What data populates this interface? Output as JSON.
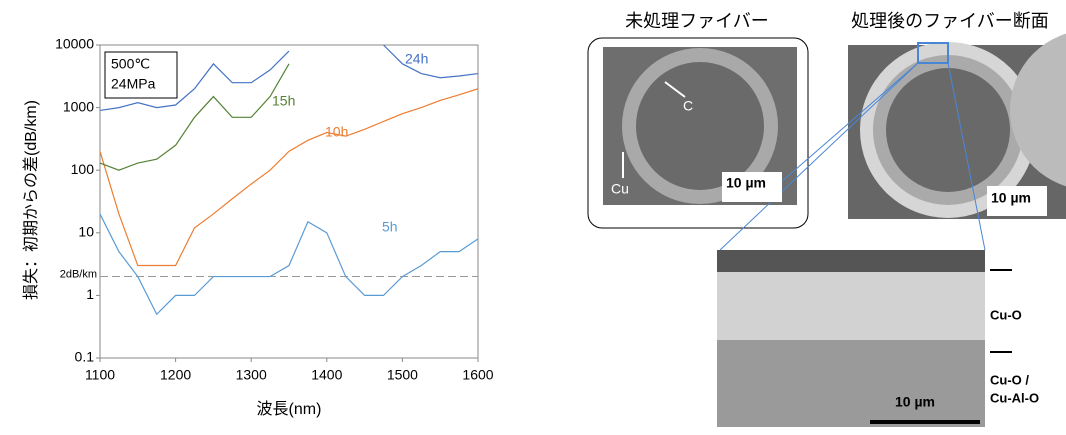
{
  "chart_data": {
    "type": "line",
    "yscale": "log",
    "y_label": "損失：初期からの差(dB/km)",
    "x_label": "波長(nm)",
    "annotation_lines": [
      "500℃",
      "24MPa"
    ],
    "reference_line": {
      "value": 2,
      "label": "2dB/km"
    },
    "x": [
      1100,
      1125,
      1150,
      1175,
      1200,
      1225,
      1250,
      1275,
      1300,
      1325,
      1350,
      1375,
      1400,
      1425,
      1450,
      1475,
      1500,
      1525,
      1550,
      1575,
      1600
    ],
    "series": [
      {
        "name": "5h",
        "color": "#5b9bd5",
        "values": [
          20,
          5,
          2,
          0.5,
          1,
          1,
          2,
          2,
          2,
          2,
          3,
          15,
          10,
          2,
          1,
          1,
          2,
          3,
          5,
          5,
          8
        ]
      },
      {
        "name": "10h",
        "color": "#ed7d31",
        "values": [
          200,
          20,
          3,
          3,
          3,
          12,
          20,
          35,
          60,
          100,
          200,
          300,
          400,
          350,
          450,
          600,
          800,
          1000,
          1300,
          1600,
          2000
        ]
      },
      {
        "name": "15h",
        "color": "#548235",
        "values": [
          130,
          100,
          130,
          150,
          250,
          700,
          1500,
          700,
          700,
          1500,
          5000,
          null,
          null,
          null,
          null,
          null,
          null,
          null,
          null,
          null,
          null
        ]
      },
      {
        "name": "24h",
        "color": "#4472c4",
        "values": [
          900,
          1000,
          1200,
          1000,
          1100,
          2000,
          5000,
          2500,
          2500,
          4000,
          8000,
          null,
          null,
          null,
          null,
          10000,
          5000,
          3500,
          3000,
          3200,
          3500
        ]
      }
    ],
    "xlim": [
      1100,
      1600
    ],
    "xticks": [
      1100,
      1200,
      1300,
      1400,
      1500,
      1600
    ],
    "ylim": [
      0.1,
      10000
    ],
    "yticks": [
      0.1,
      1,
      10,
      100,
      1000,
      10000
    ]
  },
  "images": {
    "untreated_title": "未処理ファイバー",
    "treated_title": "処理後のファイバー断面",
    "label_c": "C",
    "label_cu": "Cu",
    "scale_1": "10 µm",
    "scale_2": "10 µm",
    "scale_3": "10 µm",
    "layer_1": "Cu-O",
    "layer_2_line1": "Cu-O /",
    "layer_2_line2": "Cu-Al-O"
  }
}
